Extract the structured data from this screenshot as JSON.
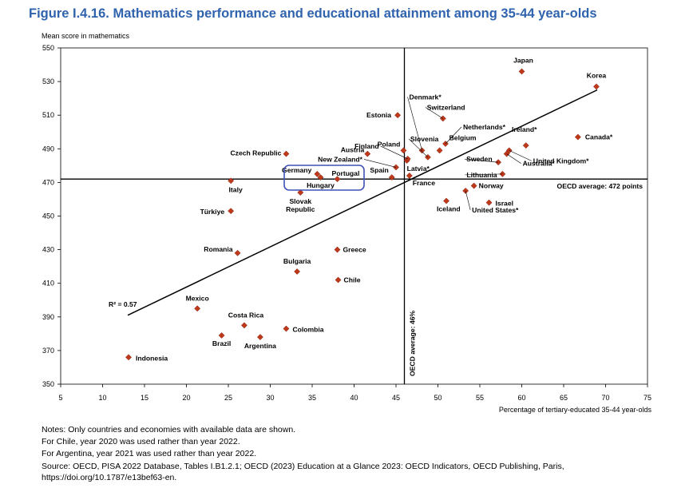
{
  "figure": {
    "title": "Figure I.4.16. Mathematics performance and educational attainment among 35-44 year-olds",
    "notes": [
      "Notes: Only countries and economies with available data are shown.",
      "For Chile, year 2020 was used rather than year 2022.",
      "For Argentina, year 2021 was used rather than year 2022.",
      "Source: OECD, PISA 2022 Database, Tables I.B1.2.1; OECD (2023) Education at a Glance 2023: OECD Indicators, OECD Publishing, Paris, https://doi.org/10.1787/e13bef63-en."
    ]
  },
  "chart_data": {
    "type": "scatter",
    "title": "Figure I.4.16. Mathematics performance and educational attainment among 35-44 year-olds",
    "xlabel": "Percentage of tertiary-educated 35-44 year-olds",
    "ylabel": "Mean score in mathematics",
    "xlim": [
      5,
      75
    ],
    "ylim": [
      350,
      550
    ],
    "xticks": [
      5,
      10,
      15,
      20,
      25,
      30,
      35,
      40,
      45,
      50,
      55,
      60,
      65,
      70,
      75
    ],
    "yticks": [
      350,
      370,
      390,
      410,
      430,
      450,
      470,
      490,
      510,
      530,
      550
    ],
    "grid": false,
    "marker_color": "#c0391b",
    "oecd_avg_x": 46,
    "oecd_avg_x_label": "OECD average: 46%",
    "oecd_avg_y": 472,
    "oecd_avg_y_label": "OECD average: 472 points",
    "trendline": {
      "x": [
        13,
        69
      ],
      "y": [
        391,
        525
      ],
      "r2_label": "R² = 0.57"
    },
    "highlight_color": "#3f51b5",
    "points": [
      {
        "name": "Indonesia",
        "x": 13.1,
        "y": 366
      },
      {
        "name": "Mexico",
        "x": 21.3,
        "y": 395
      },
      {
        "name": "Brazil",
        "x": 24.2,
        "y": 379
      },
      {
        "name": "Türkiye",
        "x": 25.3,
        "y": 453
      },
      {
        "name": "Italy",
        "x": 25.3,
        "y": 471
      },
      {
        "name": "Romania",
        "x": 26.1,
        "y": 428
      },
      {
        "name": "Costa Rica",
        "x": 26.9,
        "y": 385
      },
      {
        "name": "Argentina",
        "x": 28.8,
        "y": 378
      },
      {
        "name": "Czech Republic",
        "x": 31.9,
        "y": 487
      },
      {
        "name": "Colombia",
        "x": 31.9,
        "y": 383
      },
      {
        "name": "Bulgaria",
        "x": 33.2,
        "y": 417
      },
      {
        "name": "Slovak Republic",
        "x": 33.6,
        "y": 464
      },
      {
        "name": "Germany",
        "x": 35.6,
        "y": 475
      },
      {
        "name": "Hungary",
        "x": 36.0,
        "y": 473
      },
      {
        "name": "Portugal",
        "x": 38.0,
        "y": 472
      },
      {
        "name": "Greece",
        "x": 38.0,
        "y": 430
      },
      {
        "name": "Chile",
        "x": 38.1,
        "y": 412
      },
      {
        "name": "Austria",
        "x": 41.6,
        "y": 487
      },
      {
        "name": "Spain",
        "x": 44.5,
        "y": 473
      },
      {
        "name": "New Zealand*",
        "x": 45.0,
        "y": 479
      },
      {
        "name": "Estonia",
        "x": 45.2,
        "y": 510
      },
      {
        "name": "Poland",
        "x": 45.9,
        "y": 489
      },
      {
        "name": "Latvia*",
        "x": 46.3,
        "y": 483
      },
      {
        "name": "France",
        "x": 46.6,
        "y": 474
      },
      {
        "name": "Finland",
        "x": 46.4,
        "y": 484
      },
      {
        "name": "Denmark*",
        "x": 48.1,
        "y": 489
      },
      {
        "name": "Slovenia",
        "x": 48.8,
        "y": 485
      },
      {
        "name": "Belgium",
        "x": 50.2,
        "y": 489
      },
      {
        "name": "Switzerland",
        "x": 50.6,
        "y": 508
      },
      {
        "name": "Netherlands*",
        "x": 50.9,
        "y": 493
      },
      {
        "name": "Iceland",
        "x": 51.0,
        "y": 459
      },
      {
        "name": "United States*",
        "x": 53.3,
        "y": 465
      },
      {
        "name": "Norway",
        "x": 54.3,
        "y": 468
      },
      {
        "name": "Israel",
        "x": 56.1,
        "y": 458
      },
      {
        "name": "Sweden",
        "x": 57.2,
        "y": 482
      },
      {
        "name": "Lithuania",
        "x": 57.7,
        "y": 475
      },
      {
        "name": "United Kingdom*",
        "x": 58.5,
        "y": 489
      },
      {
        "name": "Australia*",
        "x": 58.2,
        "y": 487
      },
      {
        "name": "Japan",
        "x": 60.0,
        "y": 536
      },
      {
        "name": "Ireland*",
        "x": 60.5,
        "y": 492
      },
      {
        "name": "Canada*",
        "x": 66.7,
        "y": 497
      },
      {
        "name": "Korea",
        "x": 68.9,
        "y": 527
      }
    ]
  }
}
